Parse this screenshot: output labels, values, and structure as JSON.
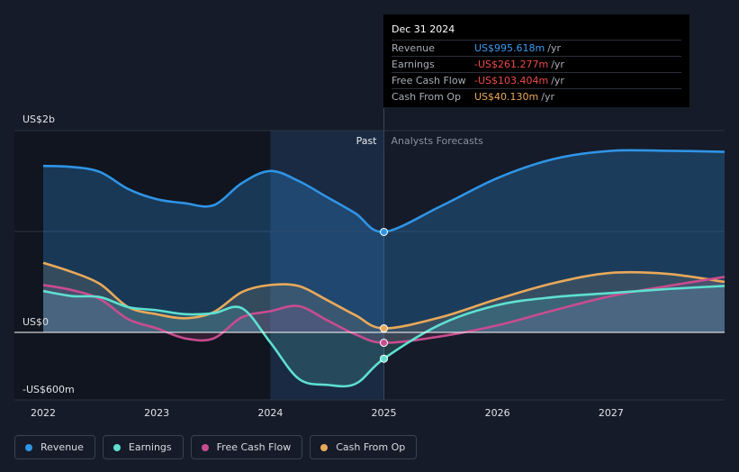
{
  "colors": {
    "revenue": "#2f94e6",
    "earnings": "#5ee0d0",
    "free_cash_flow": "#c74d8f",
    "cash_from_op": "#e8a95a",
    "background": "#151b28"
  },
  "tooltip": {
    "date": "Dec 31 2024",
    "rows": [
      {
        "label": "Revenue",
        "value": "US$995.618m",
        "unit": "/yr",
        "color": "#3b9cf0"
      },
      {
        "label": "Earnings",
        "value": "-US$261.277m",
        "unit": "/yr",
        "color": "#ef4b4b"
      },
      {
        "label": "Free Cash Flow",
        "value": "-US$103.404m",
        "unit": "/yr",
        "color": "#ef4b4b"
      },
      {
        "label": "Cash From Op",
        "value": "US$40.130m",
        "unit": "/yr",
        "color": "#e8a95a"
      }
    ]
  },
  "legend": [
    {
      "label": "Revenue",
      "color": "#2f94e6"
    },
    {
      "label": "Earnings",
      "color": "#5ee0d0"
    },
    {
      "label": "Free Cash Flow",
      "color": "#c74d8f"
    },
    {
      "label": "Cash From Op",
      "color": "#e8a95a"
    }
  ],
  "chart_data": {
    "type": "line",
    "title": "",
    "y_unit": "USD millions",
    "ylim": [
      -600,
      2000
    ],
    "y_tick_labels": [
      {
        "value": 2000,
        "label": "US$2b"
      },
      {
        "value": 0,
        "label": "US$0"
      },
      {
        "value": -600,
        "label": "-US$600m"
      }
    ],
    "xlim": [
      2022,
      2028
    ],
    "x_ticks": [
      {
        "value": 2022,
        "label": "2022"
      },
      {
        "value": 2023,
        "label": "2023"
      },
      {
        "value": 2024,
        "label": "2024"
      },
      {
        "value": 2025,
        "label": "2025"
      },
      {
        "value": 2026,
        "label": "2026"
      },
      {
        "value": 2027,
        "label": "2027"
      }
    ],
    "divider": 2025,
    "highlight_start": 2024,
    "past_label": "Past",
    "forecast_label": "Analysts Forecasts",
    "series": [
      {
        "name": "Revenue",
        "key": "revenue",
        "x": [
          2022,
          2022.25,
          2022.5,
          2022.75,
          2023,
          2023.25,
          2023.5,
          2023.75,
          2024,
          2024.25,
          2024.5,
          2024.75,
          2025,
          2025.5,
          2026,
          2026.5,
          2027,
          2027.5,
          2028
        ],
        "y": [
          1650,
          1640,
          1590,
          1420,
          1320,
          1280,
          1260,
          1480,
          1600,
          1500,
          1340,
          1180,
          996,
          1250,
          1530,
          1720,
          1800,
          1800,
          1790
        ]
      },
      {
        "name": "Earnings",
        "key": "earnings",
        "x": [
          2022,
          2022.25,
          2022.5,
          2022.75,
          2023,
          2023.25,
          2023.5,
          2023.75,
          2024,
          2024.25,
          2024.5,
          2024.75,
          2025,
          2025.5,
          2026,
          2026.5,
          2027,
          2027.5,
          2028
        ],
        "y": [
          410,
          360,
          350,
          250,
          220,
          180,
          190,
          240,
          -100,
          -460,
          -520,
          -510,
          -261,
          80,
          270,
          350,
          390,
          430,
          460
        ]
      },
      {
        "name": "Free Cash Flow",
        "key": "free_cash_flow",
        "x": [
          2022,
          2022.25,
          2022.5,
          2022.75,
          2023,
          2023.25,
          2023.5,
          2023.75,
          2024,
          2024.25,
          2024.5,
          2024.75,
          2025,
          2025.5,
          2026,
          2026.5,
          2027,
          2027.5,
          2028
        ],
        "y": [
          470,
          420,
          330,
          130,
          40,
          -60,
          -60,
          150,
          210,
          260,
          120,
          -20,
          -103,
          -40,
          70,
          220,
          360,
          460,
          550
        ]
      },
      {
        "name": "Cash From Op",
        "key": "cash_from_op",
        "x": [
          2022,
          2022.25,
          2022.5,
          2022.75,
          2023,
          2023.25,
          2023.5,
          2023.75,
          2024,
          2024.25,
          2024.5,
          2024.75,
          2025,
          2025.5,
          2026,
          2026.5,
          2027,
          2027.5,
          2028
        ],
        "y": [
          690,
          600,
          480,
          250,
          180,
          140,
          200,
          400,
          470,
          460,
          320,
          170,
          40,
          150,
          330,
          490,
          590,
          580,
          500
        ]
      }
    ],
    "markers_at": 2025,
    "marker_values": {
      "revenue": 996,
      "earnings": -261,
      "free_cash_flow": -103,
      "cash_from_op": 40
    }
  }
}
